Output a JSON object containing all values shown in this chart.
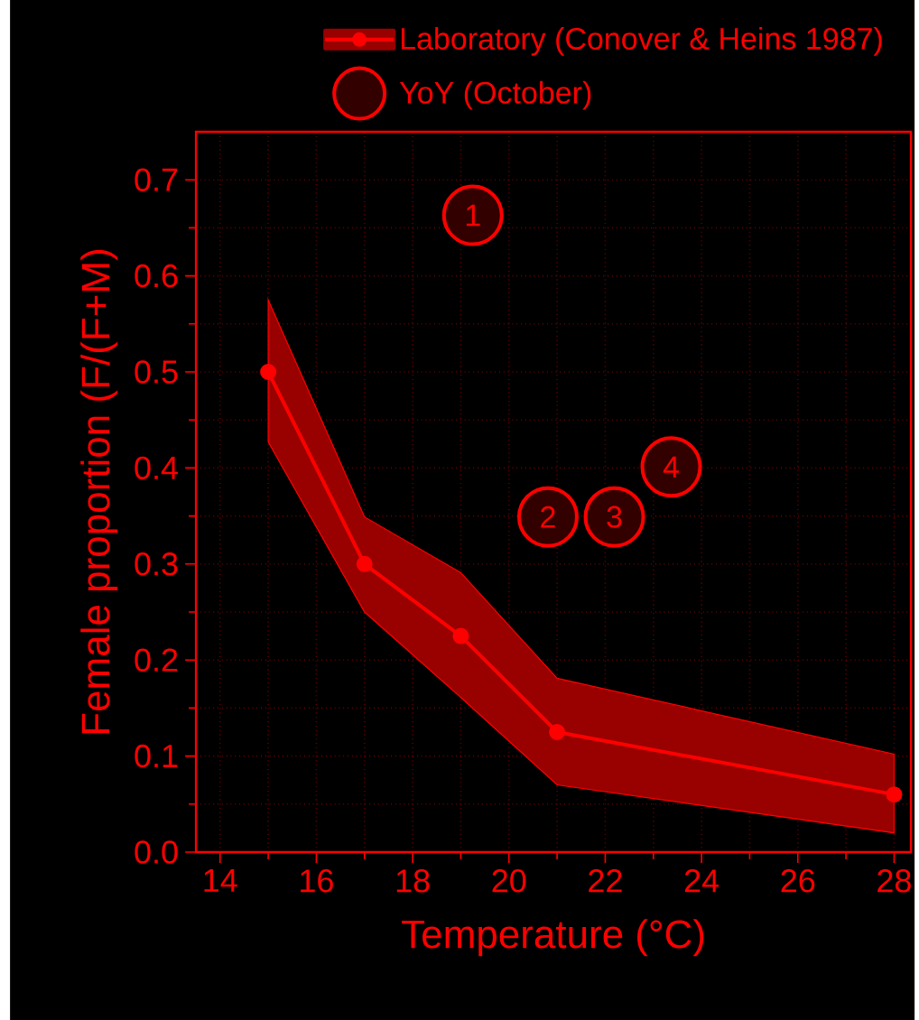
{
  "chart_data": {
    "type": "line",
    "xlabel": "Temperature (°C)",
    "ylabel": "Female proportion (F/(F+M)",
    "xlim": [
      13.5,
      28.35
    ],
    "ylim": [
      0,
      0.75
    ],
    "xticks": [
      14,
      16,
      18,
      20,
      22,
      24,
      26,
      28
    ],
    "yticks": [
      {
        "value": 0,
        "label": "0.0"
      },
      0.1,
      0.2,
      0.3,
      0.4,
      0.5,
      0.6,
      0.7
    ],
    "grid": true,
    "legend": "top",
    "marker": "circle",
    "series": [
      {
        "name": "Laboratory (Conover & Heins 1987)",
        "color": "#ff0000",
        "x": [
          15,
          17,
          19,
          21,
          28
        ],
        "values": [
          0.5,
          0.3,
          0.225,
          0.125,
          0.06
        ],
        "lower": [
          0.427,
          0.25,
          0.161,
          0.07,
          0.02
        ],
        "upper": [
          0.575,
          0.349,
          0.291,
          0.181,
          0.102
        ]
      },
      {
        "name": "YoY (October)",
        "type": "scatter",
        "color": "#ff0000",
        "x": [
          19.25,
          20.81,
          22.19,
          23.37
        ],
        "values": [
          0.663,
          0.349,
          0.349,
          0.401
        ]
      }
    ],
    "annotations": [
      {
        "text": "1",
        "x": 19.25,
        "y": 0.663
      },
      {
        "text": "2",
        "x": 20.81,
        "y": 0.349
      },
      {
        "text": "3",
        "x": 22.19,
        "y": 0.349
      },
      {
        "text": "4",
        "x": 23.37,
        "y": 0.401
      }
    ]
  }
}
